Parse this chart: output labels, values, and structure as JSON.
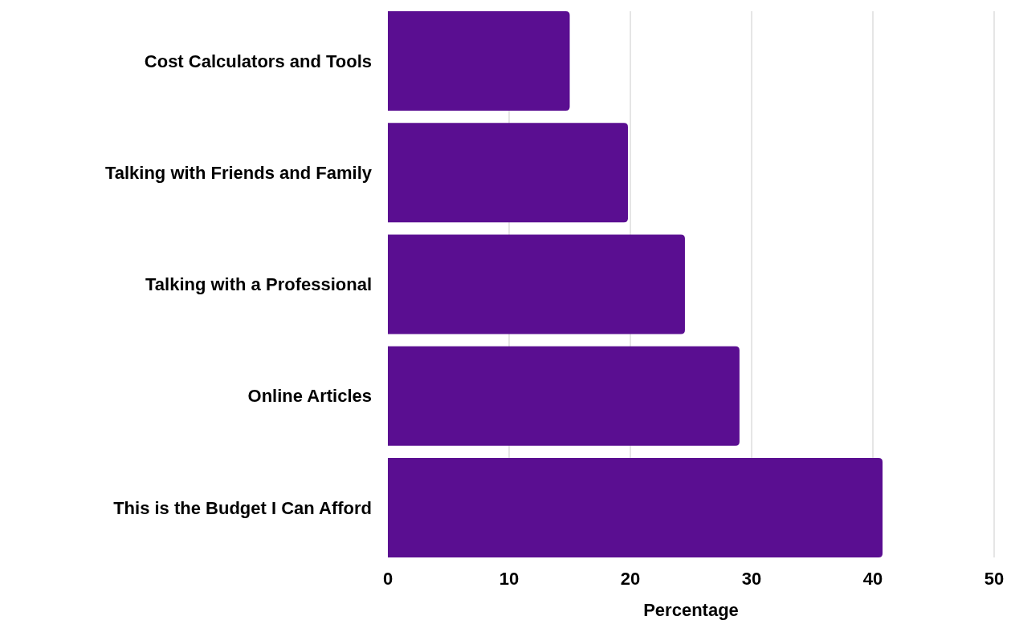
{
  "chart_data": {
    "type": "bar",
    "orientation": "horizontal",
    "xlabel": "Percentage",
    "categories": [
      "Cost Calculators and Tools",
      "Talking with Friends and Family",
      "Talking with a Professional",
      "Online Articles",
      "This is the Budget I Can Afford"
    ],
    "values": [
      15,
      19.8,
      24.5,
      29,
      40.8
    ],
    "color": "#5a0e91",
    "xlim": [
      0,
      50
    ],
    "xticks": [
      0,
      10,
      20,
      30,
      40,
      50
    ],
    "grid": "x"
  }
}
